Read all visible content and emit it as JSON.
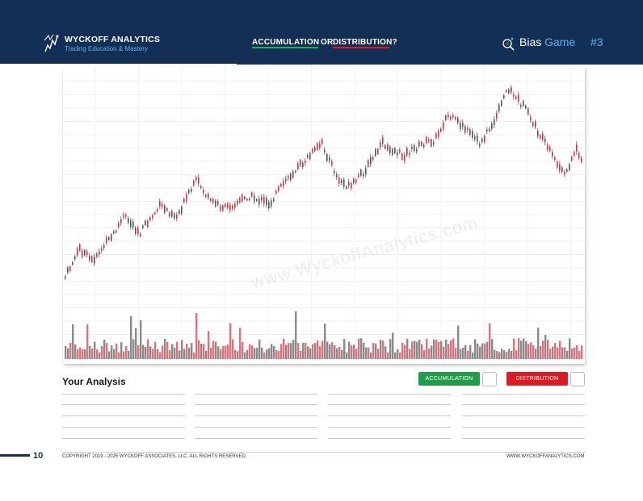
{
  "header": {
    "brand": "WYCKOFF ANALYTICS",
    "tagline": "Trading Education & Mastery",
    "tab_accumulation": "ACCUMULATION",
    "tab_or": "OR",
    "tab_distribution": "DISTRIBUTION?",
    "bias_word1": "Bias",
    "bias_word2": "Game",
    "game_number": "#3"
  },
  "chart": {
    "watermark": "www.WyckoffAnalytics.com"
  },
  "analysis": {
    "title": "Your Analysis",
    "accumulation_label": "ACCUMULATION",
    "distribution_label": "DISTRIBUTION"
  },
  "footer": {
    "page_number": "10",
    "copyright": "COPYRIGHT 2019 - 2025 WYCKOFF ASSOCIATES, LLC. ALL RIGHTS RESERVED.",
    "website": "WWW.WYCKOFFANALYTICS.COM"
  },
  "colors": {
    "header_bg": "#132f56",
    "accent_blue": "#5bb3f0",
    "accumulation_green": "#1f9d4a",
    "distribution_red": "#e01a22",
    "candle_up": "#555555",
    "candle_down": "#e03040",
    "volume_up": "#8a8a8a",
    "volume_down": "#e0707a"
  }
}
